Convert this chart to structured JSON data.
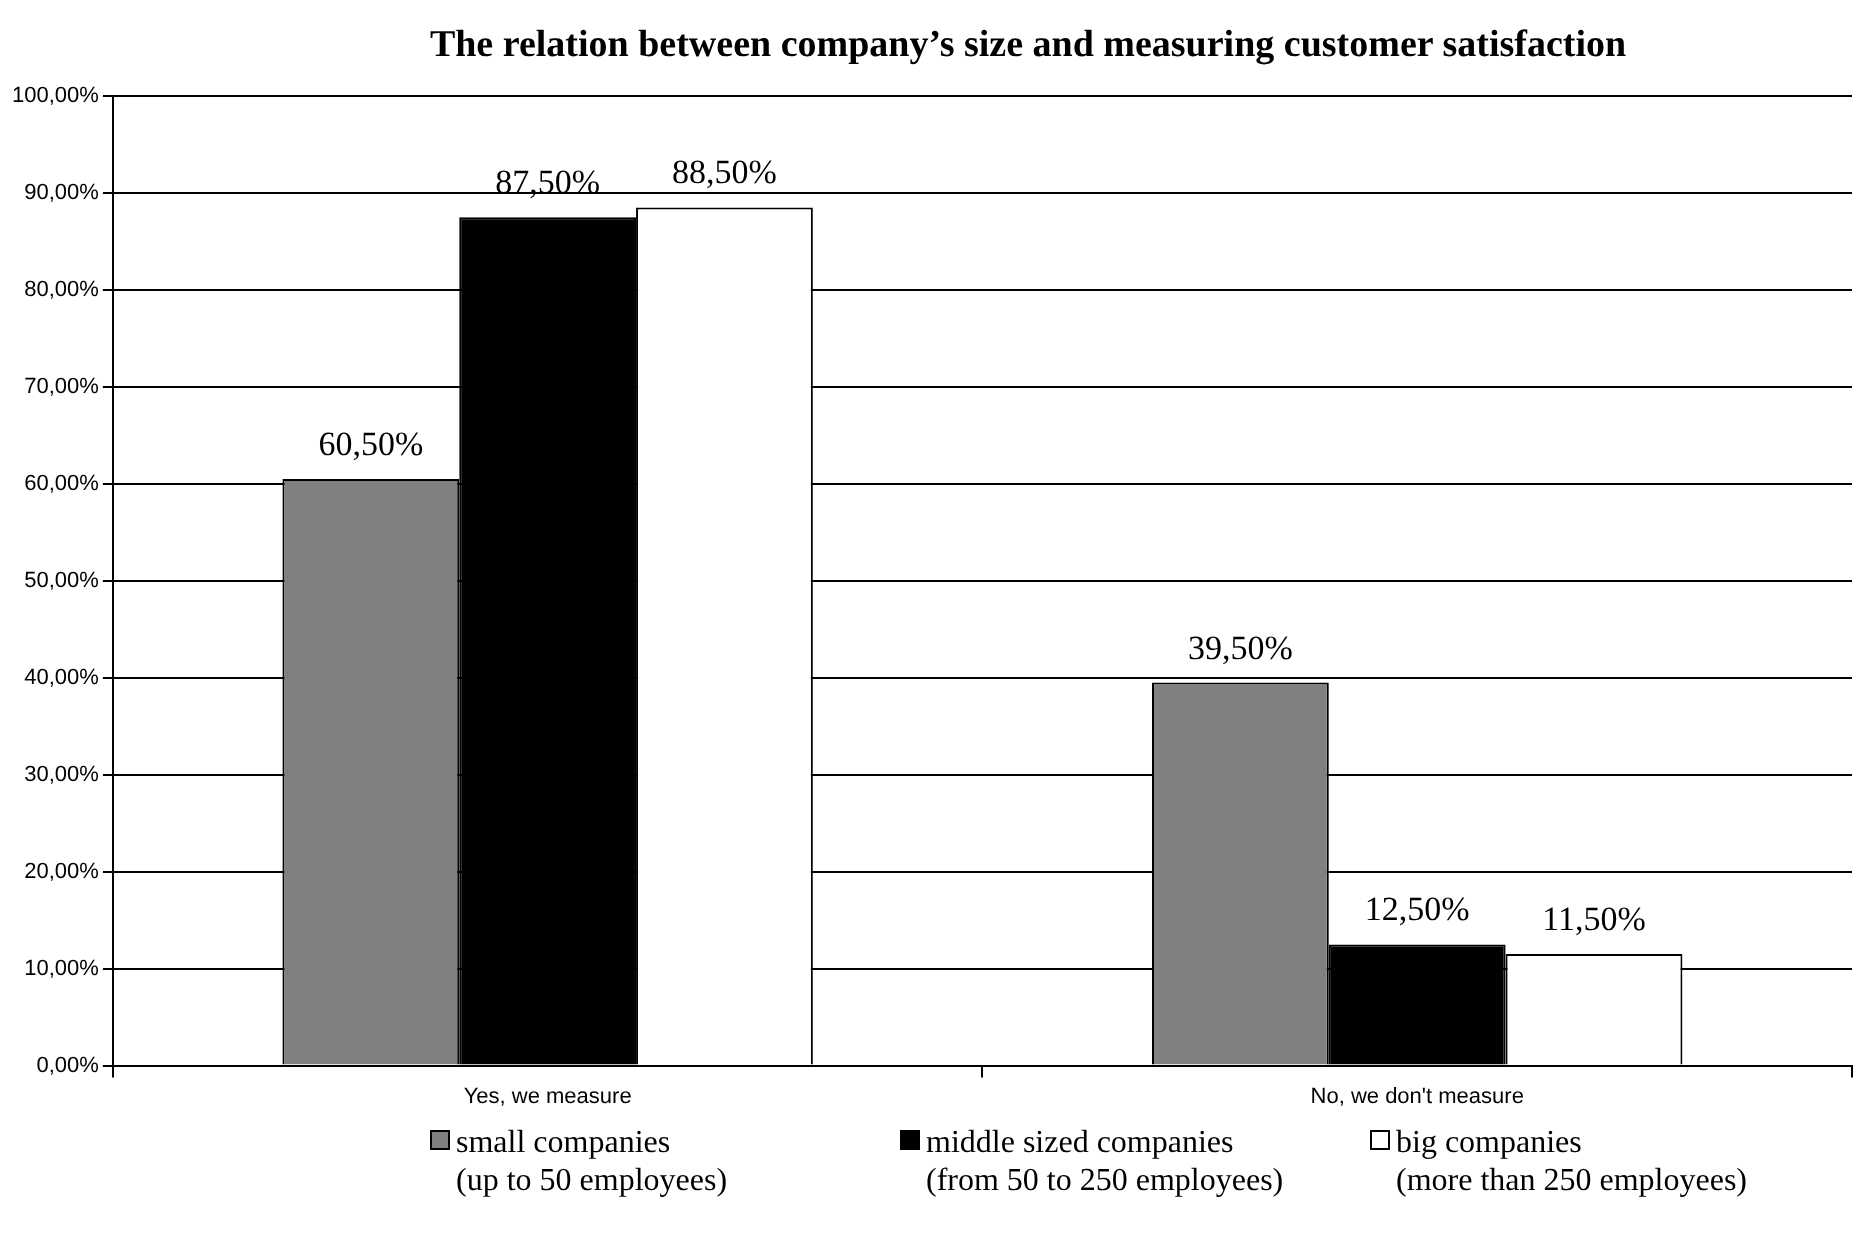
{
  "chart_data": {
    "type": "bar",
    "title": "The relation between company’s size and measuring customer satisfaction",
    "categories": [
      "Yes, we measure",
      "No, we don't measure"
    ],
    "series": [
      {
        "name": "small companies\n(up to 50 employees)",
        "color": "#808080",
        "values": [
          60.5,
          39.5
        ],
        "value_labels": [
          "60,50%",
          "39,50%"
        ]
      },
      {
        "name": "middle sized companies\n(from 50 to 250 employees)",
        "color": "#000000",
        "values": [
          87.5,
          12.5
        ],
        "value_labels": [
          "87,50%",
          "12,50%"
        ]
      },
      {
        "name": "big companies\n(more than 250 employees)",
        "color": "#ffffff",
        "values": [
          88.5,
          11.5
        ],
        "value_labels": [
          "88,50%",
          "11,50%"
        ]
      }
    ],
    "ylim": [
      0,
      100
    ],
    "yticks": [
      {
        "value": 0,
        "label": "0,00%"
      },
      {
        "value": 10,
        "label": "10,00%"
      },
      {
        "value": 20,
        "label": "20,00%"
      },
      {
        "value": 30,
        "label": "30,00%"
      },
      {
        "value": 40,
        "label": "40,00%"
      },
      {
        "value": 50,
        "label": "50,00%"
      },
      {
        "value": 60,
        "label": "60,00%"
      },
      {
        "value": 70,
        "label": "70,00%"
      },
      {
        "value": 80,
        "label": "80,00%"
      },
      {
        "value": 90,
        "label": "90,00%"
      },
      {
        "value": 100,
        "label": "100,00%"
      }
    ],
    "grid": "y",
    "legend": "bottom"
  }
}
